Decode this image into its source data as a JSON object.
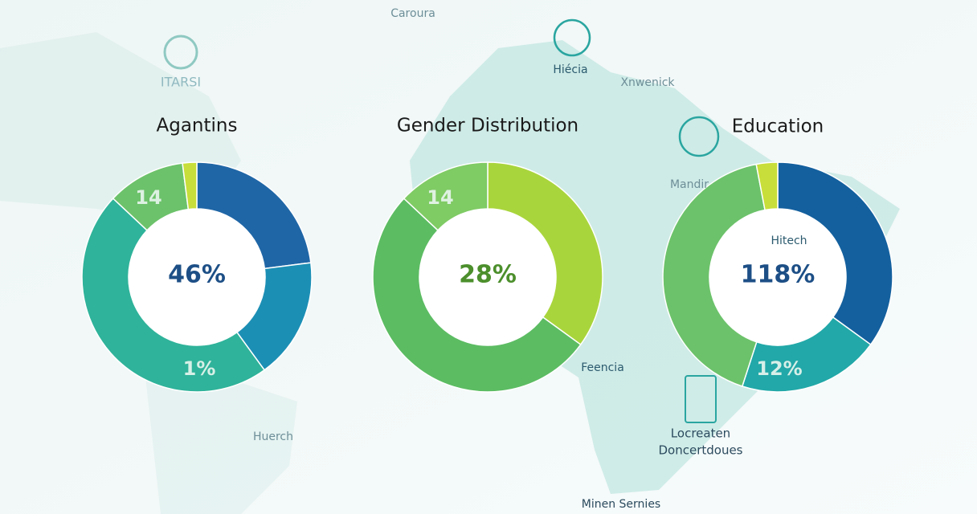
{
  "chart_data": [
    {
      "type": "donut",
      "title": "Agantins",
      "center_label": "46%",
      "center_color": "#1d4f86",
      "values": [
        23,
        17,
        47,
        11,
        2
      ],
      "colors": [
        "#1f66a6",
        "#1c8fb5",
        "#2fb39a",
        "#6cc26a",
        "#c8de3a"
      ],
      "annotations": [
        "14",
        "1%"
      ]
    },
    {
      "type": "donut",
      "title": "Gender Distribution",
      "center_label": "28%",
      "center_color": "#4c8f2c",
      "values": [
        35,
        52,
        13
      ],
      "colors": [
        "#a9d53c",
        "#5cbc62",
        "#7fcb64"
      ],
      "annotations": [
        "14"
      ]
    },
    {
      "type": "donut",
      "title": "Education",
      "center_label": "118%",
      "center_color": "#1d4f86",
      "values": [
        35,
        20,
        42,
        3
      ],
      "colors": [
        "#14609e",
        "#22a8a8",
        "#6cc26a",
        "#c8de3a"
      ],
      "annotations": [
        "12%"
      ]
    }
  ],
  "map_labels": [
    "Caroura",
    "ITARSI",
    "Hiécia",
    "Xnwenick",
    "Mandir",
    "Hitech",
    "Feencia",
    "Huerch",
    "Locreaten",
    "Doncertdoues",
    "Minen Sernies"
  ]
}
